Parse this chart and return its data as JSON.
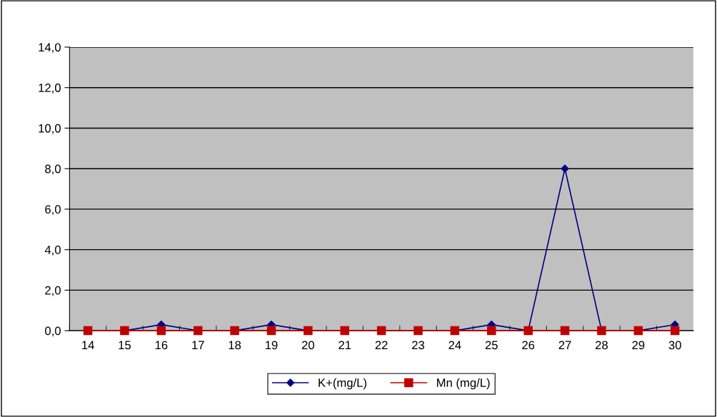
{
  "chart_data": {
    "type": "line",
    "categories": [
      "14",
      "15",
      "16",
      "17",
      "18",
      "19",
      "20",
      "21",
      "22",
      "23",
      "24",
      "25",
      "26",
      "27",
      "28",
      "29",
      "30"
    ],
    "series": [
      {
        "name": "K+(mg/L)",
        "color": "#000080",
        "marker": "diamond",
        "values": [
          0,
          0,
          0.3,
          0,
          0,
          0.3,
          0,
          0,
          0,
          0,
          0,
          0.3,
          0,
          8.0,
          0,
          0,
          0.3
        ]
      },
      {
        "name": "Mn (mg/L)",
        "color": "#c00000",
        "marker": "square",
        "values": [
          0,
          0,
          0,
          0,
          0,
          0,
          0,
          0,
          0,
          0,
          0,
          0,
          0,
          0,
          0,
          0,
          0
        ]
      }
    ],
    "ylim": [
      0,
      14
    ],
    "yticks": [
      {
        "value": 0,
        "label": "0,0"
      },
      {
        "value": 2,
        "label": "2,0"
      },
      {
        "value": 4,
        "label": "4,0"
      },
      {
        "value": 6,
        "label": "6,0"
      },
      {
        "value": 8,
        "label": "8,0"
      },
      {
        "value": 10,
        "label": "10,0"
      },
      {
        "value": 12,
        "label": "12,0"
      },
      {
        "value": 14,
        "label": "14,0"
      }
    ],
    "grid": "y",
    "legend": "bottom",
    "line_style": "solid"
  }
}
